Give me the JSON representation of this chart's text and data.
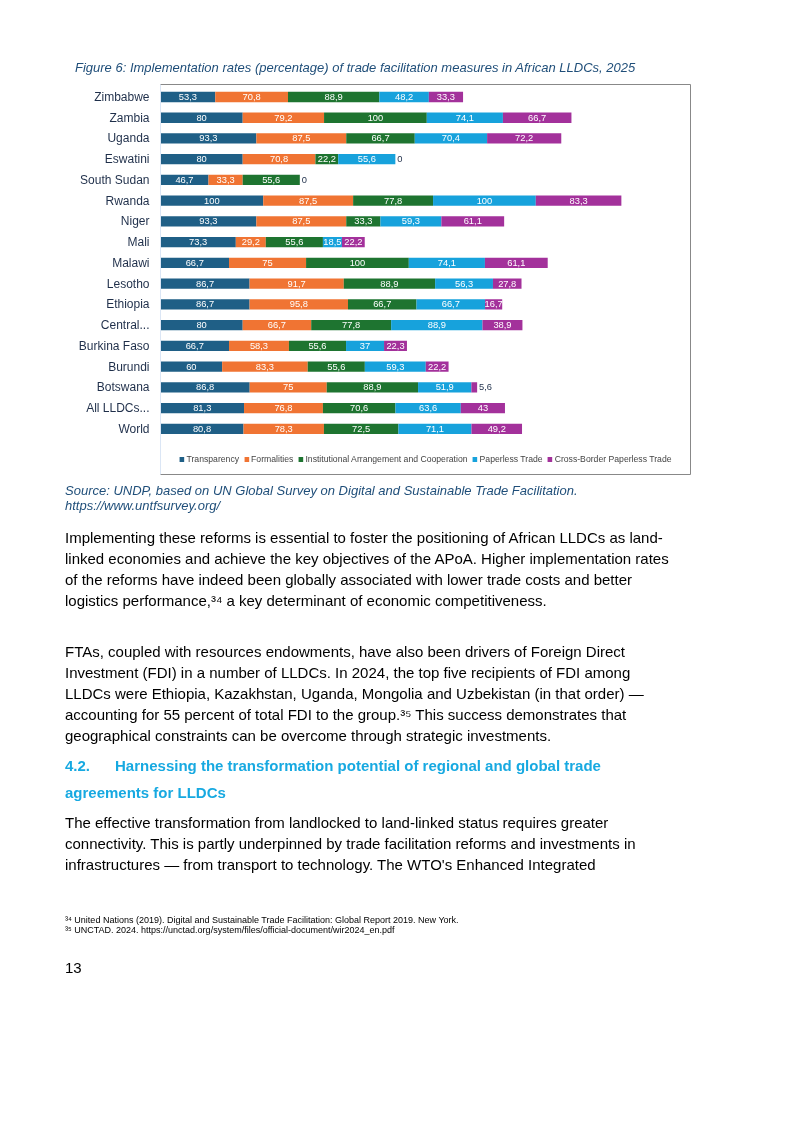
{
  "chart_data": {
    "type": "bar",
    "orientation": "horizontal",
    "stacked": true,
    "title": "Figure 6: Implementation rates (percentage) of trade facilitation measures in African LLDCs, 2025",
    "categories": [
      "Zimbabwe",
      "Zambia",
      "Uganda",
      "Eswatini",
      "South Sudan",
      "Rwanda",
      "Niger",
      "Mali",
      "Malawi",
      "Lesotho",
      "Ethiopia",
      "Central...",
      "Burkina Faso",
      "Burundi",
      "Botswana",
      "All LLDCs...",
      "World"
    ],
    "series": [
      {
        "name": "Transparency",
        "color": "#1f5f86",
        "values": [
          53.3,
          80,
          93.3,
          80,
          46.7,
          100,
          93.3,
          73.3,
          66.7,
          86.7,
          86.7,
          80,
          66.7,
          60,
          86.8,
          81.3,
          80.8
        ],
        "value_labels": [
          "53,3",
          "80",
          "93,3",
          "80",
          "46,7",
          "100",
          "93,3",
          "73,3",
          "66,7",
          "86,7",
          "86,7",
          "80",
          "66,7",
          "60",
          "86,8",
          "81,3",
          "80,8"
        ]
      },
      {
        "name": "Formalities",
        "color": "#f07433",
        "values": [
          70.8,
          79.2,
          87.5,
          70.8,
          33.3,
          87.5,
          87.5,
          29.2,
          75,
          91.7,
          95.8,
          66.7,
          58.3,
          83.3,
          75,
          76.8,
          78.3
        ],
        "value_labels": [
          "70,8",
          "79,2",
          "87,5",
          "70,8",
          "33,3",
          "87,5",
          "87,5",
          "29,2",
          "75",
          "91,7",
          "95,8",
          "66,7",
          "58,3",
          "83,3",
          "75",
          "76,8",
          "78,3"
        ]
      },
      {
        "name": "Institutional Arrangement and Cooperation",
        "color": "#1e7430",
        "values": [
          88.9,
          100,
          66.7,
          22.2,
          55.6,
          77.8,
          33.3,
          55.6,
          100,
          88.9,
          66.7,
          77.8,
          55.6,
          55.6,
          88.9,
          70.6,
          72.5
        ],
        "value_labels": [
          "88,9",
          "100",
          "66,7",
          "22,2",
          "55,6",
          "77,8",
          "33,3",
          "55,6",
          "100",
          "88,9",
          "66,7",
          "77,8",
          "55,6",
          "55,6",
          "88,9",
          "70,6",
          "72,5"
        ]
      },
      {
        "name": "Paperless Trade",
        "color": "#17a2dc",
        "values": [
          48.2,
          74.1,
          70.4,
          55.6,
          0,
          100,
          59.3,
          18.5,
          74.1,
          56.3,
          66.7,
          88.9,
          37,
          59.3,
          51.9,
          63.6,
          71.1
        ],
        "value_labels": [
          "48,2",
          "74,1",
          "70,4",
          "55,6",
          "0",
          "100",
          "59,3",
          "18,5",
          "74,1",
          "56,3",
          "66,7",
          "88,9",
          "37",
          "59,3",
          "51,9",
          "63,6",
          "71,1"
        ]
      },
      {
        "name": "Cross-Border Paperless Trade",
        "color": "#a3319b",
        "values": [
          33.3,
          66.7,
          72.2,
          0,
          0,
          83.3,
          61.1,
          22.2,
          61.1,
          27.8,
          16.7,
          38.9,
          22.3,
          22.2,
          5.6,
          43,
          49.2
        ],
        "value_labels": [
          "33,3",
          "66,7",
          "72,2",
          "0",
          null,
          "83,3",
          "61,1",
          "22,2",
          "61,1",
          "27,8",
          "16,7",
          "38,9",
          "22,3",
          "22,2",
          "5,6",
          "43",
          "49,2"
        ]
      }
    ],
    "legend": "bottom",
    "grid": false,
    "annotations": [
      "Source: UNDP, based on UN Global Survey on Digital and Sustainable Trade Facilitation.",
      "https://www.untfsurvey.org/",
      "Implementing these reforms is essential to foster the positioning of African LLDCs as land-linked economies and achieve the key objectives of the APoA. Higher implementation rates of the reforms have indeed been globally associated with lower trade costs and better logistics performance,³⁴ a key determinant of economic competitiveness.",
      "FTAs, coupled with resources endowments, have also been drivers of Foreign Direct Investment (FDI) in a number of LLDCs. In 2024, the top five recipients of FDI among LLDCs were Ethiopia, Kazakhstan, Uganda, Mongolia and Uzbekistan (in that order) — accounting for 55 percent of total FDI to the group.³⁵ This success demonstrates that geographical constraints can be overcome through strategic investments.",
      "4.2.      Harnessing the transformation potential of regional and global trade agreements for LLDCs",
      "The effective transformation from landlocked to land-linked status requires greater connectivity. This is partly underpinned by trade facilitation reforms and investments in infrastructures — from transport to technology. The WTO's Enhanced Integrated",
      "³⁴ United Nations (2019). Digital and Sustainable Trade Facilitation: Global Report 2019. New York.",
      "³⁵ UNCTAD. 2024. https://unctad.org/system/files/official-document/wir2024_en.pdf",
      "13"
    ]
  }
}
